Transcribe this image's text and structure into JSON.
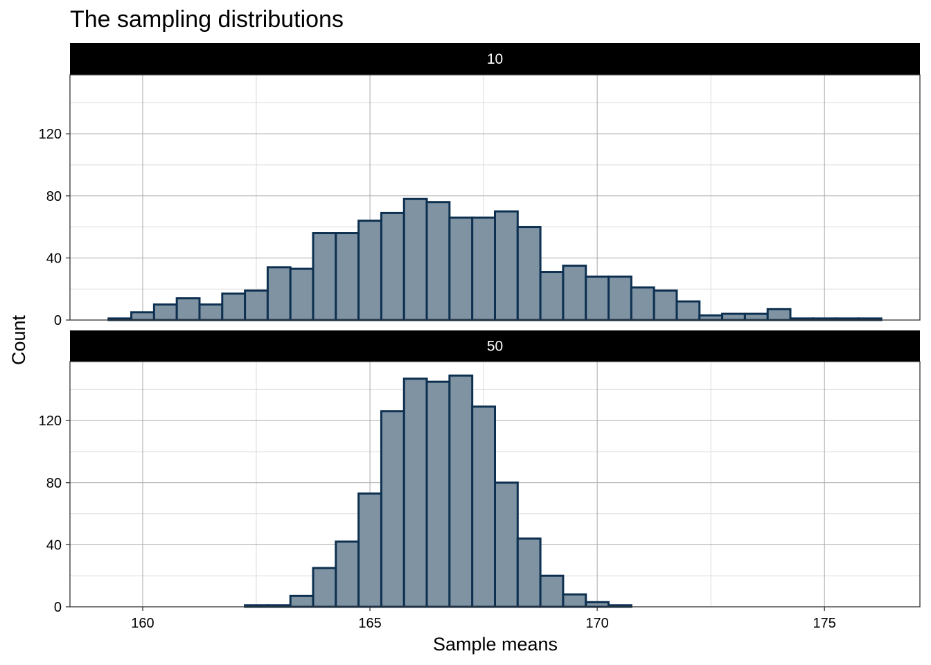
{
  "chart_data": {
    "type": "histogram",
    "title": "The sampling distributions",
    "xlabel": "Sample means",
    "ylabel": "Count",
    "xlim": [
      158.4,
      177.1
    ],
    "x_ticks": [
      160,
      165,
      170,
      175
    ],
    "y_ticks": [
      0,
      40,
      80,
      120
    ],
    "ylim": [
      0,
      158
    ],
    "grid": true,
    "bin_width": 0.5,
    "bar_fill": "#7f93a3",
    "bar_stroke": "#0d3050",
    "strip_fill": "#000000",
    "panels": [
      {
        "strip_label": "10",
        "bin_centers": [
          159.5,
          160.0,
          160.5,
          161.0,
          161.5,
          162.0,
          162.5,
          163.0,
          163.5,
          164.0,
          164.5,
          165.0,
          165.5,
          166.0,
          166.5,
          167.0,
          167.5,
          168.0,
          168.5,
          169.0,
          169.5,
          170.0,
          170.5,
          171.0,
          171.5,
          172.0,
          172.5,
          173.0,
          173.5,
          174.0,
          174.5,
          175.0,
          175.5,
          176.0
        ],
        "counts": [
          1,
          5,
          10,
          14,
          10,
          17,
          19,
          34,
          33,
          56,
          56,
          64,
          69,
          78,
          76,
          66,
          66,
          70,
          60,
          31,
          35,
          28,
          28,
          21,
          19,
          12,
          3,
          4,
          4,
          7,
          1,
          1,
          1,
          1
        ]
      },
      {
        "strip_label": "50",
        "bin_centers": [
          159.5,
          160.0,
          160.5,
          161.0,
          161.5,
          162.0,
          162.5,
          163.0,
          163.5,
          164.0,
          164.5,
          165.0,
          165.5,
          166.0,
          166.5,
          167.0,
          167.5,
          168.0,
          168.5,
          169.0,
          169.5,
          170.0,
          170.5,
          171.0,
          171.5,
          172.0,
          172.5,
          173.0,
          173.5,
          174.0,
          174.5,
          175.0,
          175.5,
          176.0
        ],
        "counts": [
          0,
          0,
          0,
          0,
          0,
          0,
          1,
          1,
          7,
          25,
          42,
          73,
          126,
          147,
          145,
          149,
          129,
          80,
          44,
          20,
          8,
          3,
          1,
          0,
          0,
          0,
          0,
          0,
          0,
          0,
          0,
          0,
          0,
          0
        ]
      }
    ]
  }
}
